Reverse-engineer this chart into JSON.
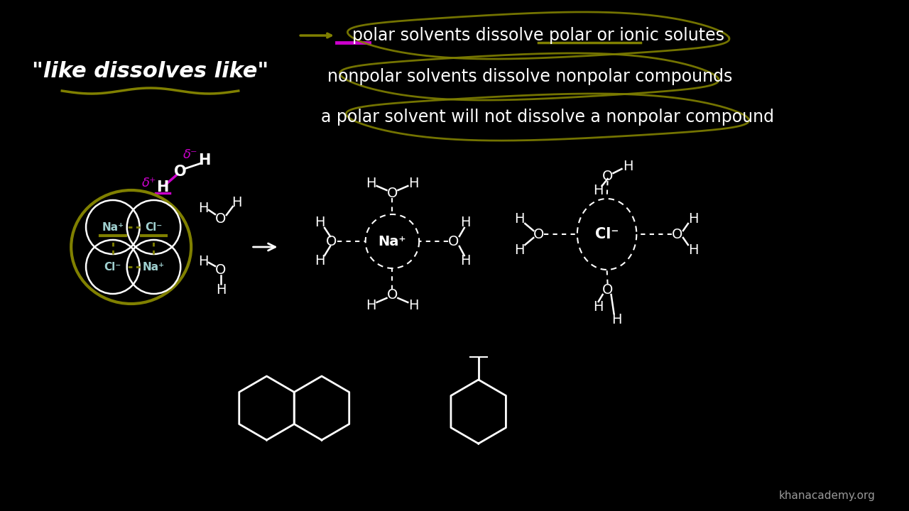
{
  "bg_color": "#000000",
  "text_color": "#ffffff",
  "olive_color": "#808000",
  "magenta_color": "#cc00cc",
  "cyan_color": "#a0d0d0",
  "title_text": "\"like dissolves like\"",
  "line1": "polar solvents dissolve polar or ionic solutes",
  "line2": "nonpolar solvents dissolve nonpolar compounds",
  "line3": "a polar solvent will not dissolve a nonpolar compound",
  "watermark": "khanacademy.org"
}
